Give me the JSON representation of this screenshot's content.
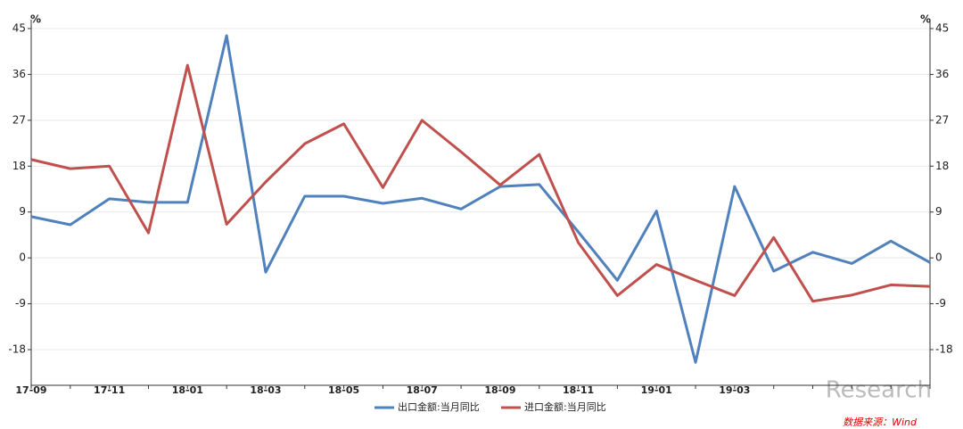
{
  "chart_data": {
    "type": "line",
    "y_unit": "%",
    "categories": [
      "17-09",
      null,
      "17-11",
      null,
      "18-01",
      null,
      "18-03",
      null,
      "18-05",
      null,
      "18-07",
      null,
      "18-09",
      null,
      "18-11",
      null,
      "19-01",
      null,
      "19-03",
      null,
      null,
      null,
      null,
      null
    ],
    "series": [
      {
        "name": "出口金额:当月同比",
        "color": "#4f81bd",
        "values": [
          8.1,
          6.5,
          11.6,
          10.9,
          10.9,
          43.6,
          -2.8,
          12.1,
          12.1,
          10.7,
          11.7,
          9.6,
          14.0,
          14.4,
          5.1,
          -4.4,
          9.2,
          -20.5,
          14.0,
          -2.6,
          1.1,
          -1.1,
          3.3,
          -0.9
        ]
      },
      {
        "name": "进口金额:当月同比",
        "color": "#c0504d",
        "values": [
          19.3,
          17.5,
          18.0,
          4.9,
          37.8,
          6.6,
          14.9,
          22.4,
          26.3,
          13.8,
          27.0,
          20.8,
          14.3,
          20.3,
          3.0,
          -7.4,
          -1.3,
          -4.4,
          -7.4,
          4.0,
          -8.5,
          -7.3,
          -5.3,
          -5.6
        ]
      }
    ],
    "ylim": [
      -25,
      45
    ],
    "yticks": [
      -18,
      -9,
      0,
      9,
      18,
      27,
      36,
      45
    ],
    "y2lim": [
      -25,
      45
    ],
    "y2ticks": [
      -18,
      -9,
      0,
      9,
      18,
      27,
      36,
      45
    ],
    "grid": true,
    "legend": "bottom",
    "watermark": "Research",
    "source": "数据来源：Wind"
  }
}
